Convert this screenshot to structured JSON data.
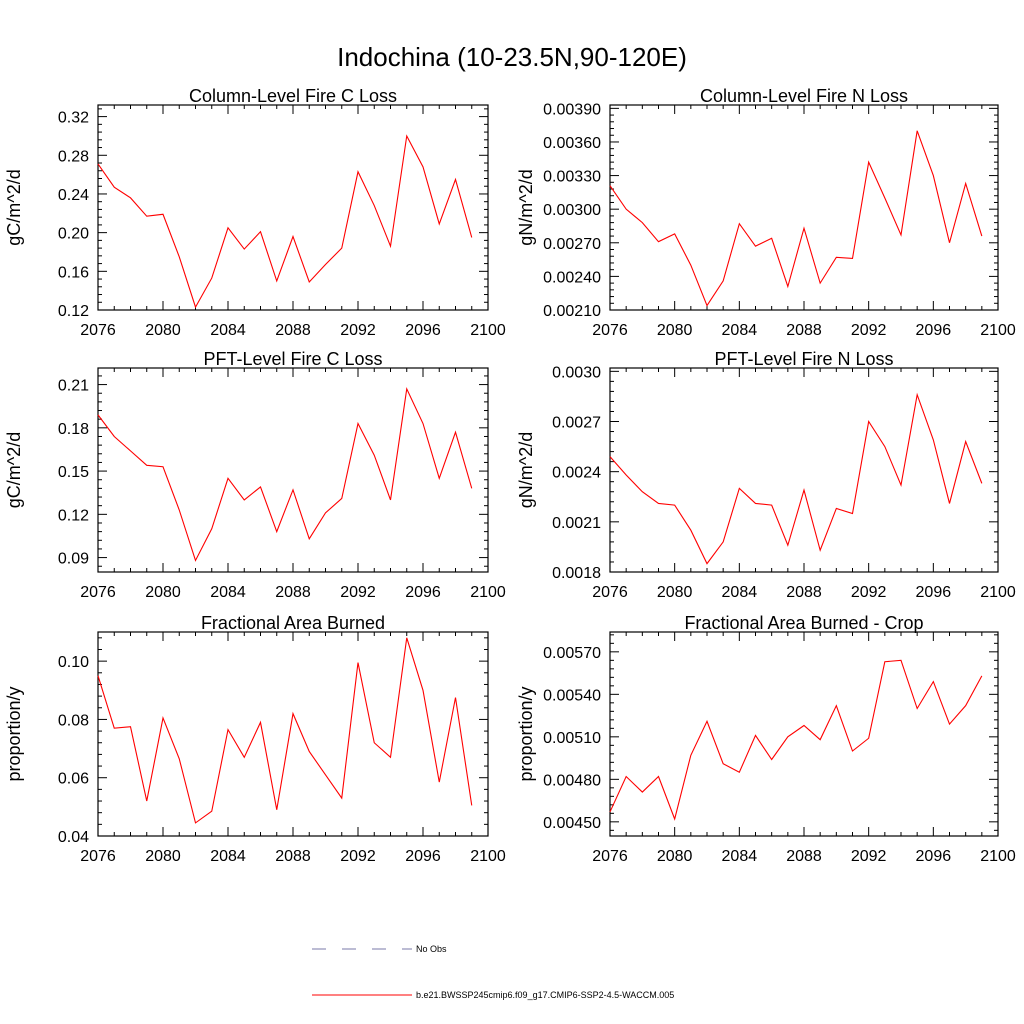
{
  "page_title": "Indochina (10-23.5N,90-120E)",
  "series_color": "#ff0000",
  "legend": {
    "no_obs_label": "No Obs",
    "no_obs_color": "#7a7aa8",
    "run_label": "b.e21.BWSSP245cmip6.f09_g17.CMIP6-SSP2-4.5-WACCM.005"
  },
  "chart_data": [
    {
      "type": "line",
      "title": "Column-Level Fire C Loss",
      "ylabel": "gC/m^2/d",
      "xlim": [
        2076,
        2100
      ],
      "ylim": [
        0.12,
        0.332
      ],
      "xticks": [
        "2076",
        "2080",
        "2084",
        "2088",
        "2092",
        "2096",
        "2100"
      ],
      "yticks": [
        "0.12",
        "0.16",
        "0.20",
        "0.24",
        "0.28",
        "0.32"
      ],
      "x": [
        2076,
        2077,
        2078,
        2079,
        2080,
        2081,
        2082,
        2083,
        2084,
        2085,
        2086,
        2087,
        2088,
        2089,
        2090,
        2091,
        2092,
        2093,
        2094,
        2095,
        2096,
        2097,
        2098,
        2099
      ],
      "values": [
        0.271,
        0.247,
        0.236,
        0.217,
        0.219,
        0.175,
        0.123,
        0.153,
        0.205,
        0.183,
        0.201,
        0.15,
        0.196,
        0.149,
        0.167,
        0.184,
        0.263,
        0.228,
        0.186,
        0.3,
        0.268,
        0.209,
        0.255,
        0.195
      ]
    },
    {
      "type": "line",
      "title": "Column-Level Fire N Loss",
      "ylabel": "gN/m^2/d",
      "xlim": [
        2076,
        2100
      ],
      "ylim": [
        0.0021,
        0.00393
      ],
      "xticks": [
        "2076",
        "2080",
        "2084",
        "2088",
        "2092",
        "2096",
        "2100"
      ],
      "yticks": [
        "0.00210",
        "0.00240",
        "0.00270",
        "0.00300",
        "0.00330",
        "0.00360",
        "0.00390"
      ],
      "x": [
        2076,
        2077,
        2078,
        2079,
        2080,
        2081,
        2082,
        2083,
        2084,
        2085,
        2086,
        2087,
        2088,
        2089,
        2090,
        2091,
        2092,
        2093,
        2094,
        2095,
        2096,
        2097,
        2098,
        2099
      ],
      "values": [
        0.00321,
        0.003,
        0.00288,
        0.00271,
        0.00278,
        0.0025,
        0.00214,
        0.00236,
        0.00287,
        0.00267,
        0.00274,
        0.00231,
        0.00283,
        0.00234,
        0.00257,
        0.00256,
        0.00342,
        0.0031,
        0.00277,
        0.0037,
        0.0033,
        0.0027,
        0.00323,
        0.00276
      ]
    },
    {
      "type": "line",
      "title": "PFT-Level Fire C Loss",
      "ylabel": "gC/m^2/d",
      "xlim": [
        2076,
        2100
      ],
      "ylim": [
        0.08,
        0.2215
      ],
      "xticks": [
        "2076",
        "2080",
        "2084",
        "2088",
        "2092",
        "2096",
        "2100"
      ],
      "yticks": [
        "0.09",
        "0.12",
        "0.15",
        "0.18",
        "0.21"
      ],
      "x": [
        2076,
        2077,
        2078,
        2079,
        2080,
        2081,
        2082,
        2083,
        2084,
        2085,
        2086,
        2087,
        2088,
        2089,
        2090,
        2091,
        2092,
        2093,
        2094,
        2095,
        2096,
        2097,
        2098,
        2099
      ],
      "values": [
        0.189,
        0.174,
        0.164,
        0.154,
        0.153,
        0.123,
        0.088,
        0.11,
        0.145,
        0.13,
        0.139,
        0.108,
        0.137,
        0.103,
        0.121,
        0.131,
        0.183,
        0.161,
        0.13,
        0.207,
        0.183,
        0.145,
        0.177,
        0.138
      ]
    },
    {
      "type": "line",
      "title": "PFT-Level Fire N Loss",
      "ylabel": "gN/m^2/d",
      "xlim": [
        2076,
        2100
      ],
      "ylim": [
        0.0018,
        0.00302
      ],
      "xticks": [
        "2076",
        "2080",
        "2084",
        "2088",
        "2092",
        "2096",
        "2100"
      ],
      "yticks": [
        "0.0018",
        "0.0021",
        "0.0024",
        "0.0027",
        "0.0030"
      ],
      "x": [
        2076,
        2077,
        2078,
        2079,
        2080,
        2081,
        2082,
        2083,
        2084,
        2085,
        2086,
        2087,
        2088,
        2089,
        2090,
        2091,
        2092,
        2093,
        2094,
        2095,
        2096,
        2097,
        2098,
        2099
      ],
      "values": [
        0.00249,
        0.00238,
        0.00228,
        0.00221,
        0.0022,
        0.00205,
        0.00185,
        0.00198,
        0.0023,
        0.00221,
        0.0022,
        0.00196,
        0.00229,
        0.00193,
        0.00218,
        0.00215,
        0.0027,
        0.00255,
        0.00232,
        0.00286,
        0.00259,
        0.00221,
        0.00258,
        0.00233
      ]
    },
    {
      "type": "line",
      "title": "Fractional Area Burned",
      "ylabel": "proportion/y",
      "xlim": [
        2076,
        2100
      ],
      "ylim": [
        0.04,
        0.11
      ],
      "xticks": [
        "2076",
        "2080",
        "2084",
        "2088",
        "2092",
        "2096",
        "2100"
      ],
      "yticks": [
        "0.04",
        "0.06",
        "0.08",
        "0.10"
      ],
      "x": [
        2076,
        2077,
        2078,
        2079,
        2080,
        2081,
        2082,
        2083,
        2084,
        2085,
        2086,
        2087,
        2088,
        2089,
        2090,
        2091,
        2092,
        2093,
        2094,
        2095,
        2096,
        2097,
        2098,
        2099
      ],
      "values": [
        0.095,
        0.077,
        0.0775,
        0.052,
        0.0805,
        0.0665,
        0.0445,
        0.0485,
        0.0765,
        0.067,
        0.079,
        0.049,
        0.082,
        0.069,
        0.061,
        0.053,
        0.0995,
        0.072,
        0.067,
        0.108,
        0.09,
        0.0585,
        0.0875,
        0.0505
      ]
    },
    {
      "type": "line",
      "title": "Fractional Area Burned - Crop",
      "ylabel": "proportion/y",
      "xlim": [
        2076,
        2100
      ],
      "ylim": [
        0.0044,
        0.00584
      ],
      "xticks": [
        "2076",
        "2080",
        "2084",
        "2088",
        "2092",
        "2096",
        "2100"
      ],
      "yticks": [
        "0.00450",
        "0.00480",
        "0.00510",
        "0.00540",
        "0.00570"
      ],
      "x": [
        2076,
        2077,
        2078,
        2079,
        2080,
        2081,
        2082,
        2083,
        2084,
        2085,
        2086,
        2087,
        2088,
        2089,
        2090,
        2091,
        2092,
        2093,
        2094,
        2095,
        2096,
        2097,
        2098,
        2099
      ],
      "values": [
        0.00457,
        0.00482,
        0.00471,
        0.00482,
        0.00452,
        0.00497,
        0.00521,
        0.00491,
        0.00485,
        0.00511,
        0.00494,
        0.0051,
        0.00518,
        0.00508,
        0.00532,
        0.005,
        0.00509,
        0.00563,
        0.00564,
        0.0053,
        0.00549,
        0.00519,
        0.00532,
        0.00553
      ]
    }
  ]
}
